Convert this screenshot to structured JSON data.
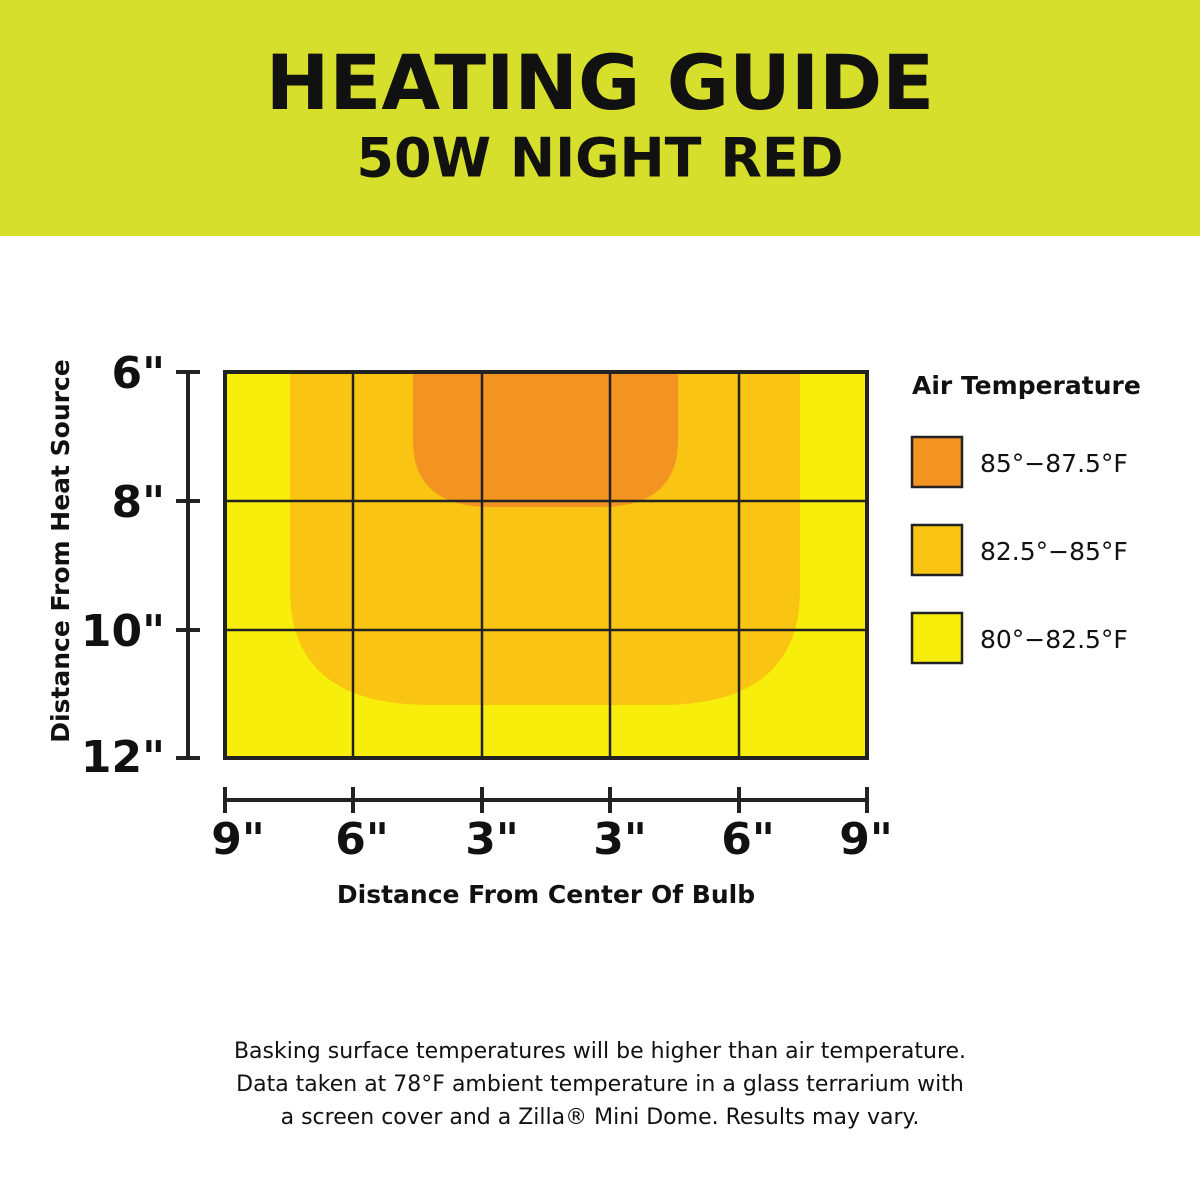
{
  "header": {
    "title": "HEATING GUIDE",
    "subtitle": "50W NIGHT RED"
  },
  "diagram": {
    "y_axis": {
      "label": "Distance From Heat Source",
      "ticks": [
        "6\"",
        "8\"",
        "10\"",
        "12\""
      ]
    },
    "x_axis": {
      "label": "Distance From Center Of Bulb",
      "ticks": [
        "9\"",
        "6\"",
        "3\"",
        "3\"",
        "6\"",
        "9\""
      ]
    }
  },
  "legend": {
    "title": "Air Temperature",
    "items": [
      {
        "label": "85°−87.5°F",
        "color": "#f29322"
      },
      {
        "label": "82.5°−85°F",
        "color": "#f9c412"
      },
      {
        "label": "80°−82.5°F",
        "color": "#f8ee0c"
      }
    ]
  },
  "footer": {
    "lines": [
      "Basking surface temperatures will be higher than air temperature.",
      "Data taken at 78°F ambient temperature in a glass terrarium with",
      "a screen cover and a Zilla® Mini Dome. Results may vary."
    ]
  }
}
